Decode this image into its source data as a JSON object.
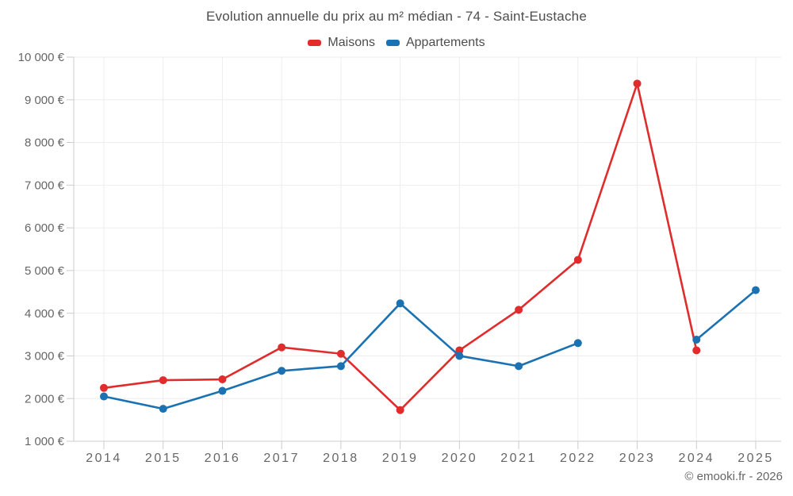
{
  "chart_data": {
    "type": "line",
    "title": "Evolution annuelle du prix au m² médian - 74 - Saint-Eustache",
    "categories": [
      "2014",
      "2015",
      "2016",
      "2017",
      "2018",
      "2019",
      "2020",
      "2021",
      "2022",
      "2023",
      "2024",
      "2025"
    ],
    "series": [
      {
        "name": "Maisons",
        "color": "#e02c2c",
        "values": [
          2250,
          2430,
          2450,
          3200,
          3050,
          1730,
          3130,
          4080,
          5250,
          9380,
          3130,
          null
        ]
      },
      {
        "name": "Appartements",
        "color": "#1b72b2",
        "values": [
          2050,
          1760,
          2180,
          2650,
          2760,
          4230,
          3000,
          2760,
          3300,
          null,
          3380,
          4540
        ]
      }
    ],
    "xlabel": "",
    "ylabel": "",
    "ylim": [
      1000,
      10000
    ],
    "ytick_step": 1000,
    "ytick_labels": [
      "1 000 €",
      "2 000 €",
      "3 000 €",
      "4 000 €",
      "5 000 €",
      "6 000 €",
      "7 000 €",
      "8 000 €",
      "9 000 €",
      "10 000 €"
    ],
    "grid": true,
    "legend_position": "top"
  },
  "footer": {
    "copyright": "© emooki.fr - 2026"
  },
  "colors": {
    "background": "#ffffff",
    "grid": "#ededed",
    "axis": "#cccccc",
    "tick_text": "#666666",
    "title_text": "#4d4d4d",
    "maisons": "#e02c2c",
    "appartements": "#1b72b2"
  }
}
